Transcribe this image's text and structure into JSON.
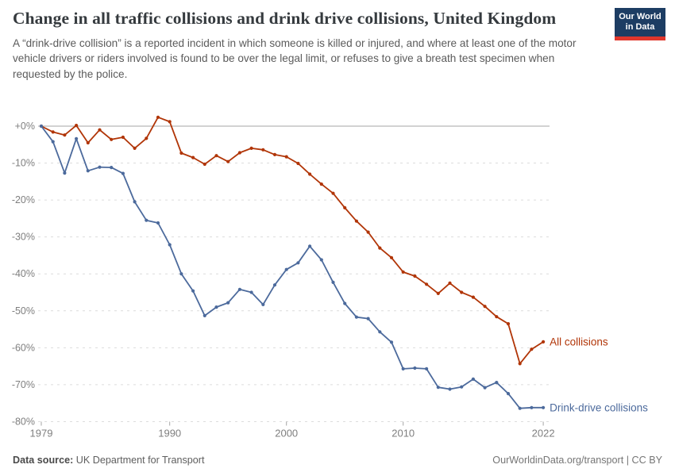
{
  "header": {
    "title": "Change in all traffic collisions and drink drive collisions, United Kingdom",
    "subtitle": "A “drink-drive collision” is a reported incident in which someone is killed or injured, and where at least one of the motor vehicle drivers or riders involved is found to be over the legal limit, or refuses to give a breath test specimen when requested by the police.",
    "logo": {
      "line1": "Our World",
      "line2": "in Data",
      "bg_color": "#1d3d63",
      "stripe_color": "#e0362c"
    }
  },
  "chart_data": {
    "type": "line",
    "title": "Change in all traffic collisions and drink drive collisions, United Kingdom",
    "xlabel": "",
    "ylabel": "",
    "ylim": [
      -80,
      5
    ],
    "x_range": [
      1979,
      2022
    ],
    "grid": "horizontal dashed, solid line at 0%",
    "legend_position": "labels at line ends",
    "y_ticks": [
      0,
      -10,
      -20,
      -30,
      -40,
      -50,
      -60,
      -70,
      -80
    ],
    "y_tick_labels": [
      "+0%",
      "-10%",
      "-20%",
      "-30%",
      "-40%",
      "-50%",
      "-60%",
      "-70%",
      "-80%"
    ],
    "x_ticks": [
      1979,
      1990,
      2000,
      2010,
      2022
    ],
    "x": [
      1979,
      1980,
      1981,
      1982,
      1983,
      1984,
      1985,
      1986,
      1987,
      1988,
      1989,
      1990,
      1991,
      1992,
      1993,
      1994,
      1995,
      1996,
      1997,
      1998,
      1999,
      2000,
      2001,
      2002,
      2003,
      2004,
      2005,
      2006,
      2007,
      2008,
      2009,
      2010,
      2011,
      2012,
      2013,
      2014,
      2015,
      2016,
      2017,
      2018,
      2019,
      2020,
      2021,
      2022
    ],
    "series": [
      {
        "name": "All collisions",
        "color": "#b13507",
        "values": [
          0,
          -1.6,
          -2.4,
          0.2,
          -4.5,
          -1.0,
          -3.6,
          -3.0,
          -6.0,
          -3.3,
          2.4,
          1.2,
          -7.3,
          -8.5,
          -10.3,
          -8.0,
          -9.6,
          -7.2,
          -6.0,
          -6.4,
          -7.7,
          -8.3,
          -10.1,
          -13.0,
          -15.7,
          -18.2,
          -22.1,
          -25.7,
          -28.7,
          -33.0,
          -35.6,
          -39.5,
          -40.6,
          -42.8,
          -45.3,
          -42.5,
          -45.0,
          -46.3,
          -48.8,
          -51.6,
          -53.5,
          -64.3,
          -60.4,
          -58.4
        ]
      },
      {
        "name": "Drink-drive collisions",
        "color": "#4c6a9c",
        "values": [
          0,
          -4.2,
          -12.7,
          -3.4,
          -12.1,
          -11.1,
          -11.2,
          -12.8,
          -20.5,
          -25.5,
          -26.2,
          -32.1,
          -40.0,
          -44.6,
          -51.3,
          -49.0,
          -47.8,
          -44.2,
          -45.0,
          -48.3,
          -43.0,
          -38.8,
          -37.0,
          -32.5,
          -36.2,
          -42.3,
          -48.0,
          -51.7,
          -52.1,
          -55.7,
          -58.5,
          -65.7,
          -65.5,
          -65.7,
          -70.7,
          -71.2,
          -70.6,
          -68.5,
          -70.8,
          -69.4,
          -72.4,
          -76.4,
          -76.2,
          -76.2
        ]
      }
    ]
  },
  "footer": {
    "source_label": "Data source:",
    "source_value": " UK Department for Transport",
    "credit": "OurWorldinData.org/transport | CC BY"
  }
}
